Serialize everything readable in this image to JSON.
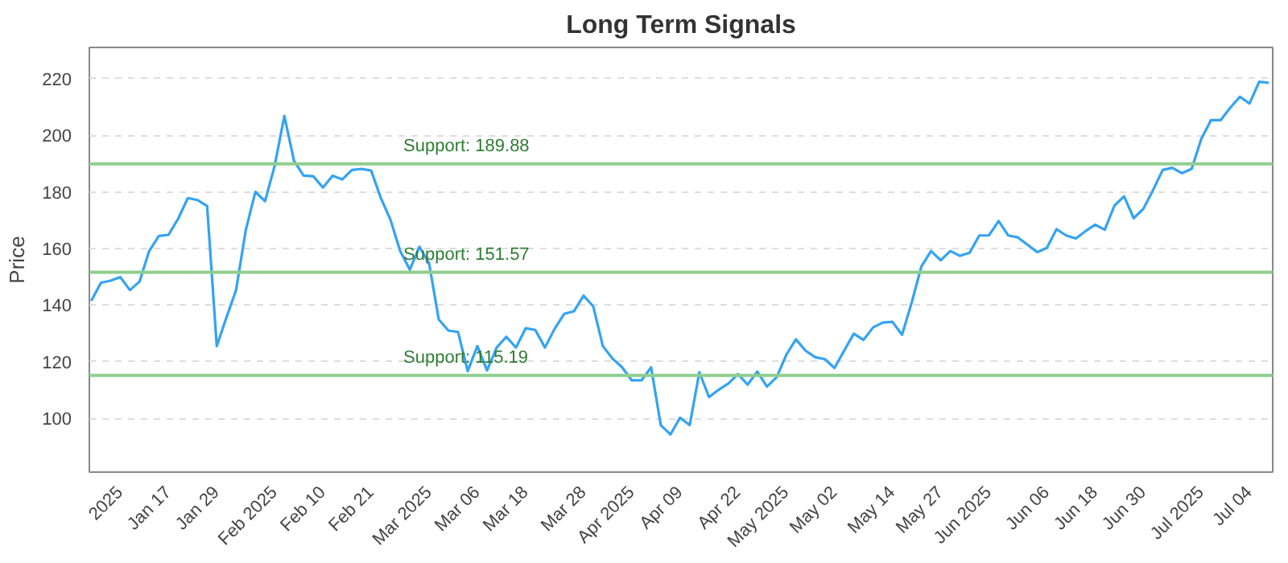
{
  "chart_data": {
    "type": "line",
    "title": "Long Term Signals",
    "ylabel": "Price",
    "categories": [
      null,
      null,
      null,
      "2025",
      null,
      null,
      null,
      null,
      "Jan 17",
      null,
      null,
      null,
      null,
      "Jan 29",
      null,
      null,
      null,
      null,
      null,
      "Feb 2025",
      null,
      null,
      null,
      null,
      "Feb 10",
      null,
      null,
      null,
      null,
      "Feb 21",
      null,
      null,
      null,
      null,
      null,
      "Mar 2025",
      null,
      null,
      null,
      null,
      "Mar 06",
      null,
      null,
      null,
      null,
      "Mar 18",
      null,
      null,
      null,
      null,
      null,
      "Mar 28",
      null,
      null,
      null,
      null,
      "Apr 2025",
      null,
      null,
      null,
      null,
      "Apr 09",
      null,
      null,
      null,
      null,
      null,
      "Apr 22",
      null,
      null,
      null,
      null,
      "May 2025",
      null,
      null,
      null,
      null,
      "May 02",
      null,
      null,
      null,
      null,
      null,
      "May 14",
      null,
      null,
      null,
      null,
      "May 27",
      null,
      null,
      null,
      null,
      "Jun 2025",
      null,
      null,
      null,
      null,
      null,
      "Jun 06",
      null,
      null,
      null,
      null,
      "Jun 18",
      null,
      null,
      null,
      null,
      "Jun 30",
      null,
      null,
      null,
      null,
      null,
      "Jul 2025",
      null,
      null,
      null,
      null,
      "Jul 04",
      null,
      null
    ],
    "series": [
      {
        "color": "#33a3f4",
        "values": [
          141.5,
          147.9,
          148.6,
          149.9,
          145.3,
          148.3,
          159.1,
          164.4,
          164.8,
          170.5,
          177.8,
          177.1,
          175,
          125.5,
          135.6,
          145.3,
          166.4,
          180,
          176.7,
          189.2,
          206.8,
          191,
          185.7,
          185.5,
          181.5,
          185.7,
          184.4,
          187.7,
          188.1,
          187.5,
          177.8,
          170.1,
          159.1,
          152.5,
          160.6,
          154.7,
          134.9,
          131,
          130.5,
          116.7,
          125.5,
          116.9,
          125,
          128.8,
          125,
          131.8,
          131.2,
          125,
          131.6,
          136.9,
          137.8,
          143.3,
          139.6,
          125.5,
          121.1,
          118,
          113.4,
          113.4,
          118,
          97.6,
          94.3,
          100.2,
          97.6,
          116.3,
          107.5,
          110.1,
          112.3,
          115.6,
          111.9,
          116.5,
          111.2,
          114.5,
          122.4,
          127.9,
          123.9,
          121.6,
          120.9,
          117.8,
          123.9,
          129.9,
          127.7,
          132.1,
          133.8,
          134.1,
          129.5,
          140.9,
          153.6,
          159.1,
          155.8,
          159.1,
          157.4,
          158.5,
          164.6,
          164.6,
          169.7,
          164.6,
          163.9,
          161.3,
          158.7,
          160.2,
          166.8,
          164.6,
          163.5,
          166.1,
          168.4,
          166.6,
          175.1,
          178.4,
          170.7,
          174,
          180.6,
          187.7,
          188.5,
          186.6,
          188.1,
          198.7,
          205.3,
          205.3,
          209.7,
          213.6,
          211.2,
          218.9,
          218.5
        ]
      }
    ],
    "ylim": [
      81,
      231
    ],
    "yticks": [
      100,
      120,
      140,
      160,
      180,
      200,
      220
    ],
    "grid": "y",
    "marker": "none",
    "line_style": "solid",
    "ref_lines": [
      {
        "axis": "y",
        "value": 189.88,
        "label": "Support: 189.88",
        "color": "#8fce8f"
      },
      {
        "axis": "y",
        "value": 151.57,
        "label": "Support: 151.57",
        "color": "#8fce8f"
      },
      {
        "axis": "y",
        "value": 115.19,
        "label": "Support: 115.19",
        "color": "#8fce8f"
      }
    ]
  }
}
